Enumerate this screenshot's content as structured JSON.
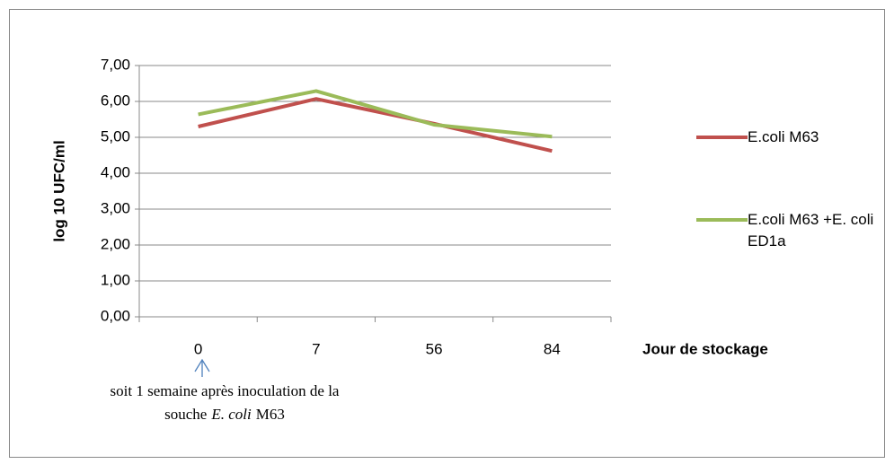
{
  "chart_data": {
    "type": "line",
    "y_axis_label": "log 10 UFC/ml",
    "x_axis_label": "Jour de stockage",
    "categories": [
      "0",
      "7",
      "56",
      "84"
    ],
    "series": [
      {
        "name": "E.coli M63",
        "color": "#c0504d",
        "values": [
          5.3,
          6.07,
          5.38,
          4.62
        ]
      },
      {
        "name": "E.coli M63 +E. coli ED1a",
        "color": "#9bbb59",
        "values": [
          5.64,
          6.29,
          5.35,
          5.02
        ]
      }
    ],
    "ylim": [
      0,
      7
    ],
    "yticks": [
      {
        "value": 0,
        "label": "0,00"
      },
      {
        "value": 1,
        "label": "1,00"
      },
      {
        "value": 2,
        "label": "2,00"
      },
      {
        "value": 3,
        "label": "3,00"
      },
      {
        "value": 4,
        "label": "4,00"
      },
      {
        "value": 5,
        "label": "5,00"
      },
      {
        "value": 6,
        "label": "6,00"
      },
      {
        "value": 7,
        "label": "7,00"
      }
    ],
    "grid": true,
    "legend": "right",
    "annotation": {
      "line1": "soit 1 semaine après inoculation de la",
      "line2_start": "souche",
      "line2_italic": "E. coli",
      "line2_end": "M63"
    }
  }
}
